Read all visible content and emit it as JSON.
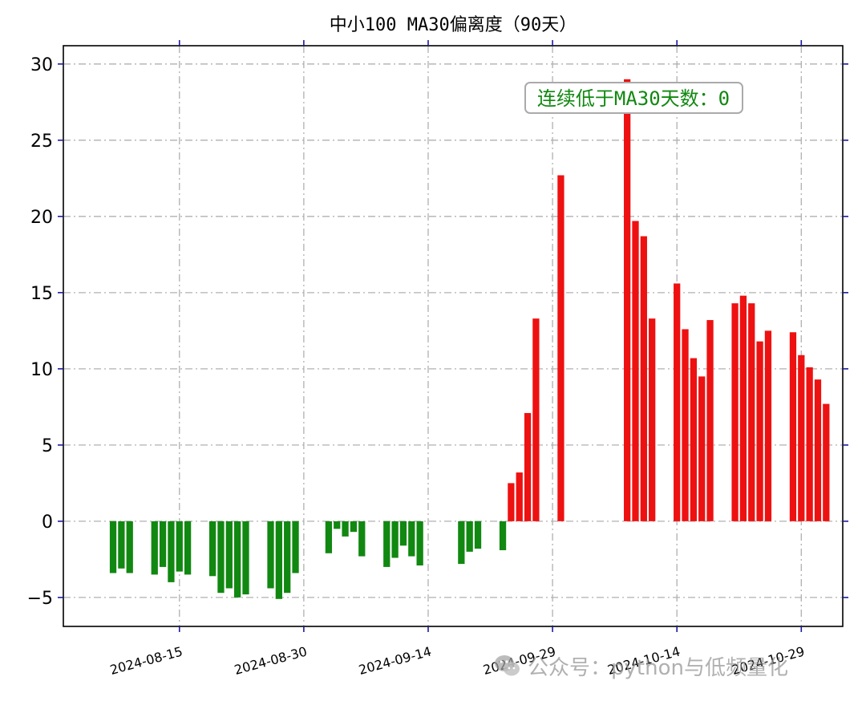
{
  "chart_data": {
    "type": "bar",
    "title": "中小100 MA30偏离度（90天）",
    "xlabel": "",
    "ylabel": "",
    "ylim": [
      -6.9,
      31.2
    ],
    "yticks": [
      -5,
      0,
      5,
      10,
      15,
      20,
      25,
      30
    ],
    "ytick_labels": [
      "−5",
      "0",
      "5",
      "10",
      "15",
      "20",
      "25",
      "30"
    ],
    "xlim": [
      "2024-08-01",
      "2024-11-03"
    ],
    "xticks": [
      "2024-08-15",
      "2024-08-30",
      "2024-09-14",
      "2024-09-29",
      "2024-10-14",
      "2024-10-29"
    ],
    "grid": true,
    "colors": {
      "positive": "#ee1111",
      "negative": "#118811",
      "annotation_text": "#118811",
      "annotation_border": "#aaaaaa",
      "tick_mark": "#1a1aa0",
      "grid": "#b0b0b0"
    },
    "annotation": "连续低于MA30天数：0",
    "annotation_position": "top-right",
    "bars": [
      {
        "x": "2024-08-07",
        "y": -3.4
      },
      {
        "x": "2024-08-08",
        "y": -3.1
      },
      {
        "x": "2024-08-09",
        "y": -3.4
      },
      {
        "x": "2024-08-12",
        "y": -3.5
      },
      {
        "x": "2024-08-13",
        "y": -3.0
      },
      {
        "x": "2024-08-14",
        "y": -4.0
      },
      {
        "x": "2024-08-15",
        "y": -3.3
      },
      {
        "x": "2024-08-16",
        "y": -3.5
      },
      {
        "x": "2024-08-19",
        "y": -3.6
      },
      {
        "x": "2024-08-20",
        "y": -4.7
      },
      {
        "x": "2024-08-21",
        "y": -4.4
      },
      {
        "x": "2024-08-22",
        "y": -5.0
      },
      {
        "x": "2024-08-23",
        "y": -4.8
      },
      {
        "x": "2024-08-26",
        "y": -4.4
      },
      {
        "x": "2024-08-27",
        "y": -5.1
      },
      {
        "x": "2024-08-28",
        "y": -4.7
      },
      {
        "x": "2024-08-29",
        "y": -3.4
      },
      {
        "x": "2024-09-02",
        "y": -2.1
      },
      {
        "x": "2024-09-03",
        "y": -0.5
      },
      {
        "x": "2024-09-04",
        "y": -1.0
      },
      {
        "x": "2024-09-05",
        "y": -0.7
      },
      {
        "x": "2024-09-06",
        "y": -2.3
      },
      {
        "x": "2024-09-09",
        "y": -3.0
      },
      {
        "x": "2024-09-10",
        "y": -2.4
      },
      {
        "x": "2024-09-11",
        "y": -1.6
      },
      {
        "x": "2024-09-12",
        "y": -2.3
      },
      {
        "x": "2024-09-13",
        "y": -2.9
      },
      {
        "x": "2024-09-18",
        "y": -2.8
      },
      {
        "x": "2024-09-19",
        "y": -2.0
      },
      {
        "x": "2024-09-20",
        "y": -1.8
      },
      {
        "x": "2024-09-23",
        "y": -1.9
      },
      {
        "x": "2024-09-24",
        "y": 2.5
      },
      {
        "x": "2024-09-25",
        "y": 3.2
      },
      {
        "x": "2024-09-26",
        "y": 7.1
      },
      {
        "x": "2024-09-27",
        "y": 13.3
      },
      {
        "x": "2024-09-30",
        "y": 22.7
      },
      {
        "x": "2024-10-08",
        "y": 29.0
      },
      {
        "x": "2024-10-09",
        "y": 19.7
      },
      {
        "x": "2024-10-10",
        "y": 18.7
      },
      {
        "x": "2024-10-11",
        "y": 13.3
      },
      {
        "x": "2024-10-14",
        "y": 15.6
      },
      {
        "x": "2024-10-15",
        "y": 12.6
      },
      {
        "x": "2024-10-16",
        "y": 10.7
      },
      {
        "x": "2024-10-17",
        "y": 9.5
      },
      {
        "x": "2024-10-18",
        "y": 13.2
      },
      {
        "x": "2024-10-21",
        "y": 14.3
      },
      {
        "x": "2024-10-22",
        "y": 14.8
      },
      {
        "x": "2024-10-23",
        "y": 14.3
      },
      {
        "x": "2024-10-24",
        "y": 11.8
      },
      {
        "x": "2024-10-25",
        "y": 12.5
      },
      {
        "x": "2024-10-28",
        "y": 12.4
      },
      {
        "x": "2024-10-29",
        "y": 10.9
      },
      {
        "x": "2024-10-30",
        "y": 10.1
      },
      {
        "x": "2024-10-31",
        "y": 9.3
      },
      {
        "x": "2024-11-01",
        "y": 7.7
      }
    ]
  },
  "watermark": {
    "icon": "wechat-icon",
    "text": "公众号：python与低频量化"
  }
}
